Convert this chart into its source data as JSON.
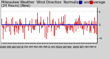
{
  "title_line1": "Milwaukee Weather  Wind Direction  Normalized and Average",
  "title_line2": "(24 Hours) (New)",
  "background_color": "#d4d4d4",
  "plot_bg_color": "#ffffff",
  "bar_color": "#cc0000",
  "avg_line_color": "#0000cc",
  "legend_norm_color": "#0000bb",
  "legend_avg_color": "#cc0000",
  "ylim": [
    -6.5,
    6.5
  ],
  "yticks": [
    -5,
    0,
    5
  ],
  "ytick_labels": [
    "-5",
    "0",
    "5"
  ],
  "num_points": 200,
  "avg_value": 0.15,
  "grid_color": "#999999",
  "title_fontsize": 3.5,
  "tick_fontsize": 2.8,
  "seed": 7
}
